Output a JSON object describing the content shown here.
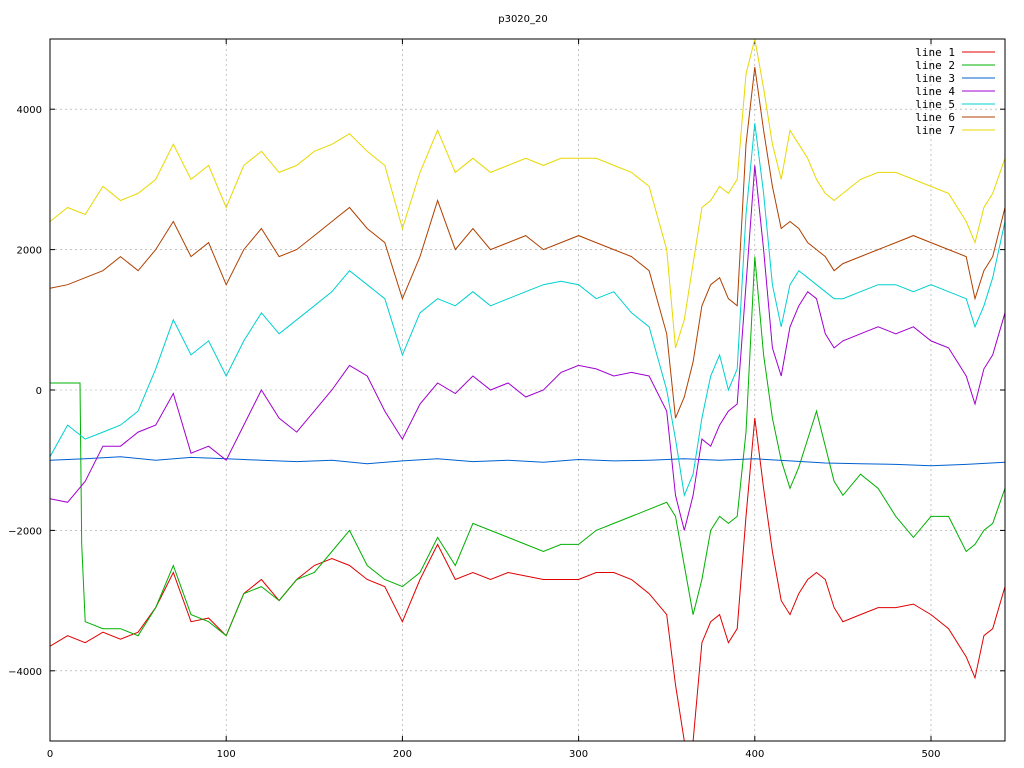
{
  "chart_data": {
    "type": "line",
    "title": "p3020_20",
    "xlabel": "",
    "ylabel": "",
    "xlim": [
      0,
      542
    ],
    "ylim": [
      -5000,
      5000
    ],
    "xticks": [
      0,
      100,
      200,
      300,
      400,
      500
    ],
    "yticks": [
      -4000,
      -2000,
      0,
      2000,
      4000
    ],
    "xtick_labels": [
      "0",
      "100",
      "200",
      "300",
      "400",
      "500"
    ],
    "ytick_labels": [
      "−4000",
      "−2000",
      "0",
      "2000",
      "4000"
    ],
    "grid": true,
    "legend_position": "top-right",
    "series": [
      {
        "name": "line 1",
        "color": "#e00000",
        "x": [
          0,
          10,
          20,
          30,
          40,
          50,
          60,
          70,
          80,
          90,
          100,
          110,
          120,
          130,
          140,
          150,
          160,
          170,
          180,
          190,
          200,
          210,
          220,
          230,
          240,
          250,
          260,
          270,
          280,
          290,
          300,
          310,
          320,
          330,
          340,
          350,
          355,
          360,
          365,
          370,
          375,
          380,
          385,
          390,
          395,
          400,
          405,
          410,
          415,
          420,
          425,
          430,
          435,
          440,
          445,
          450,
          460,
          470,
          480,
          490,
          500,
          510,
          520,
          525,
          530,
          535,
          542
        ],
        "y": [
          -3650,
          -3500,
          -3600,
          -3450,
          -3550,
          -3450,
          -3100,
          -2600,
          -3300,
          -3250,
          -3500,
          -2900,
          -2700,
          -3000,
          -2700,
          -2500,
          -2400,
          -2500,
          -2700,
          -2800,
          -3300,
          -2700,
          -2200,
          -2700,
          -2600,
          -2700,
          -2600,
          -2650,
          -2700,
          -2700,
          -2700,
          -2600,
          -2600,
          -2700,
          -2900,
          -3200,
          -4200,
          -5000,
          -5000,
          -3600,
          -3300,
          -3200,
          -3600,
          -3400,
          -1800,
          -400,
          -1400,
          -2300,
          -3000,
          -3200,
          -2900,
          -2700,
          -2600,
          -2700,
          -3100,
          -3300,
          -3200,
          -3100,
          -3100,
          -3050,
          -3200,
          -3400,
          -3800,
          -4100,
          -3500,
          -3400,
          -2800
        ]
      },
      {
        "name": "line 2",
        "color": "#00b000",
        "x": [
          0,
          10,
          17,
          18,
          20,
          30,
          40,
          50,
          60,
          70,
          80,
          90,
          100,
          110,
          120,
          130,
          140,
          150,
          160,
          170,
          180,
          190,
          200,
          210,
          220,
          230,
          240,
          250,
          260,
          270,
          280,
          290,
          300,
          310,
          320,
          330,
          340,
          350,
          355,
          360,
          365,
          370,
          375,
          380,
          385,
          390,
          395,
          400,
          405,
          410,
          415,
          420,
          425,
          430,
          435,
          440,
          445,
          450,
          460,
          470,
          480,
          490,
          500,
          510,
          520,
          525,
          530,
          535,
          542
        ],
        "y": [
          100,
          100,
          100,
          -2200,
          -3300,
          -3400,
          -3400,
          -3500,
          -3100,
          -2500,
          -3200,
          -3300,
          -3500,
          -2900,
          -2800,
          -3000,
          -2700,
          -2600,
          -2300,
          -2000,
          -2500,
          -2700,
          -2800,
          -2600,
          -2100,
          -2500,
          -1900,
          -2000,
          -2100,
          -2200,
          -2300,
          -2200,
          -2200,
          -2000,
          -1900,
          -1800,
          -1700,
          -1600,
          -1800,
          -2500,
          -3200,
          -2700,
          -2000,
          -1800,
          -1900,
          -1800,
          -600,
          1900,
          500,
          -400,
          -1000,
          -1400,
          -1100,
          -700,
          -300,
          -800,
          -1300,
          -1500,
          -1200,
          -1400,
          -1800,
          -2100,
          -1800,
          -1800,
          -2300,
          -2200,
          -2000,
          -1900,
          -1400
        ]
      },
      {
        "name": "line 3",
        "color": "#0060d0",
        "x": [
          0,
          20,
          40,
          60,
          80,
          100,
          120,
          140,
          160,
          180,
          200,
          220,
          240,
          260,
          280,
          300,
          320,
          340,
          360,
          380,
          400,
          420,
          440,
          460,
          480,
          500,
          520,
          542
        ],
        "y": [
          -1000,
          -980,
          -950,
          -1000,
          -960,
          -980,
          -1000,
          -1020,
          -1000,
          -1050,
          -1010,
          -980,
          -1020,
          -1000,
          -1030,
          -990,
          -1010,
          -1000,
          -980,
          -1000,
          -980,
          -1010,
          -1040,
          -1050,
          -1060,
          -1080,
          -1060,
          -1030
        ]
      },
      {
        "name": "line 4",
        "color": "#a000d0",
        "x": [
          0,
          10,
          20,
          30,
          40,
          50,
          60,
          70,
          80,
          90,
          100,
          110,
          120,
          130,
          140,
          150,
          160,
          170,
          180,
          190,
          200,
          210,
          220,
          230,
          240,
          250,
          260,
          270,
          280,
          290,
          300,
          310,
          320,
          330,
          340,
          350,
          355,
          360,
          365,
          370,
          375,
          380,
          385,
          390,
          395,
          400,
          405,
          410,
          415,
          420,
          425,
          430,
          435,
          440,
          445,
          450,
          460,
          470,
          480,
          490,
          500,
          510,
          520,
          525,
          530,
          535,
          542
        ],
        "y": [
          -1550,
          -1600,
          -1300,
          -800,
          -800,
          -600,
          -500,
          -50,
          -900,
          -800,
          -1000,
          -500,
          0,
          -400,
          -600,
          -300,
          0,
          350,
          200,
          -300,
          -700,
          -200,
          100,
          -50,
          200,
          0,
          100,
          -100,
          0,
          250,
          350,
          300,
          200,
          250,
          200,
          -300,
          -1500,
          -2000,
          -1500,
          -700,
          -800,
          -500,
          -300,
          -200,
          1500,
          3200,
          2000,
          600,
          200,
          900,
          1200,
          1400,
          1300,
          800,
          600,
          700,
          800,
          900,
          800,
          900,
          700,
          600,
          200,
          -200,
          300,
          500,
          1100
        ]
      },
      {
        "name": "line 5",
        "color": "#00d0d0",
        "x": [
          0,
          10,
          20,
          30,
          40,
          50,
          60,
          70,
          80,
          90,
          100,
          110,
          120,
          130,
          140,
          150,
          160,
          170,
          180,
          190,
          200,
          210,
          220,
          230,
          240,
          250,
          260,
          270,
          280,
          290,
          300,
          310,
          320,
          330,
          340,
          350,
          355,
          360,
          365,
          370,
          375,
          380,
          385,
          390,
          395,
          400,
          405,
          410,
          415,
          420,
          425,
          430,
          435,
          440,
          445,
          450,
          460,
          470,
          480,
          490,
          500,
          510,
          520,
          525,
          530,
          535,
          542
        ],
        "y": [
          -950,
          -500,
          -700,
          -600,
          -500,
          -300,
          300,
          1000,
          500,
          700,
          200,
          700,
          1100,
          800,
          1000,
          1200,
          1400,
          1700,
          1500,
          1300,
          500,
          1100,
          1300,
          1200,
          1400,
          1200,
          1300,
          1400,
          1500,
          1550,
          1500,
          1300,
          1400,
          1100,
          900,
          0,
          -700,
          -1500,
          -1200,
          -400,
          200,
          500,
          0,
          300,
          2500,
          3800,
          2800,
          1500,
          900,
          1500,
          1700,
          1600,
          1500,
          1400,
          1300,
          1300,
          1400,
          1500,
          1500,
          1400,
          1500,
          1400,
          1300,
          900,
          1200,
          1600,
          2400
        ]
      },
      {
        "name": "line 6",
        "color": "#b04000",
        "x": [
          0,
          10,
          20,
          30,
          40,
          50,
          60,
          70,
          80,
          90,
          100,
          110,
          120,
          130,
          140,
          150,
          160,
          170,
          180,
          190,
          200,
          210,
          220,
          230,
          240,
          250,
          260,
          270,
          280,
          290,
          300,
          310,
          320,
          330,
          340,
          350,
          355,
          360,
          365,
          370,
          375,
          380,
          385,
          390,
          395,
          400,
          405,
          410,
          415,
          420,
          425,
          430,
          435,
          440,
          445,
          450,
          460,
          470,
          480,
          490,
          500,
          510,
          520,
          525,
          530,
          535,
          542
        ],
        "y": [
          1450,
          1500,
          1600,
          1700,
          1900,
          1700,
          2000,
          2400,
          1900,
          2100,
          1500,
          2000,
          2300,
          1900,
          2000,
          2200,
          2400,
          2600,
          2300,
          2100,
          1300,
          1900,
          2700,
          2000,
          2300,
          2000,
          2100,
          2200,
          2000,
          2100,
          2200,
          2100,
          2000,
          1900,
          1700,
          800,
          -400,
          -100,
          400,
          1200,
          1500,
          1600,
          1300,
          1200,
          3500,
          4600,
          3700,
          2900,
          2300,
          2400,
          2300,
          2100,
          2000,
          1900,
          1700,
          1800,
          1900,
          2000,
          2100,
          2200,
          2100,
          2000,
          1900,
          1300,
          1700,
          1900,
          2600
        ]
      },
      {
        "name": "line 7",
        "color": "#e8d800",
        "x": [
          0,
          10,
          20,
          30,
          40,
          50,
          60,
          70,
          80,
          90,
          100,
          110,
          120,
          130,
          140,
          150,
          160,
          170,
          180,
          190,
          200,
          210,
          220,
          230,
          240,
          250,
          260,
          270,
          280,
          290,
          300,
          310,
          320,
          330,
          340,
          350,
          355,
          360,
          365,
          370,
          375,
          380,
          385,
          390,
          395,
          400,
          405,
          410,
          415,
          420,
          425,
          430,
          435,
          440,
          445,
          450,
          460,
          470,
          480,
          490,
          500,
          510,
          520,
          525,
          530,
          535,
          542
        ],
        "y": [
          2400,
          2600,
          2500,
          2900,
          2700,
          2800,
          3000,
          3500,
          3000,
          3200,
          2600,
          3200,
          3400,
          3100,
          3200,
          3400,
          3500,
          3650,
          3400,
          3200,
          2300,
          3100,
          3700,
          3100,
          3300,
          3100,
          3200,
          3300,
          3200,
          3300,
          3300,
          3300,
          3200,
          3100,
          2900,
          2000,
          600,
          1000,
          1800,
          2600,
          2700,
          2900,
          2800,
          3000,
          4500,
          5000,
          4300,
          3500,
          3000,
          3700,
          3500,
          3300,
          3000,
          2800,
          2700,
          2800,
          3000,
          3100,
          3100,
          3000,
          2900,
          2800,
          2400,
          2100,
          2600,
          2800,
          3300
        ]
      }
    ]
  }
}
